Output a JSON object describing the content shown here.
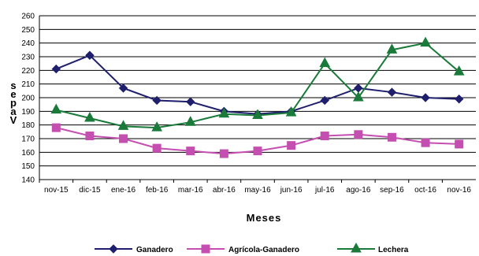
{
  "chart_data": {
    "type": "line",
    "title": "",
    "xlabel": "Meses",
    "ylabel_chars": [
      "s",
      "e",
      "p",
      "a",
      "V"
    ],
    "categories": [
      "nov-15",
      "dic-15",
      "ene-16",
      "feb-16",
      "mar-16",
      "abr-16",
      "may-16",
      "jun-16",
      "jul-16",
      "ago-16",
      "sep-16",
      "oct-16",
      "nov-16"
    ],
    "ylim": [
      140,
      260
    ],
    "yticks": [
      140,
      150,
      160,
      170,
      180,
      190,
      200,
      210,
      220,
      230,
      240,
      250,
      260
    ],
    "grid": true,
    "legend_position": "bottom",
    "series": [
      {
        "name": "Ganadero",
        "color": "#1f1f6e",
        "marker": "diamond",
        "values": [
          221,
          231,
          207,
          198,
          197,
          190,
          188,
          190,
          198,
          207,
          204,
          200,
          199
        ]
      },
      {
        "name": "Agrícola-Ganadero",
        "color": "#c44fb0",
        "marker": "square",
        "values": [
          178,
          172,
          170,
          163,
          161,
          159,
          161,
          165,
          172,
          173,
          171,
          167,
          166
        ]
      },
      {
        "name": "Lechera",
        "color": "#1a7a3a",
        "marker": "triangle",
        "values": [
          191,
          185,
          179,
          178,
          182,
          188,
          187,
          189,
          225,
          200,
          235,
          240,
          219
        ]
      }
    ]
  }
}
